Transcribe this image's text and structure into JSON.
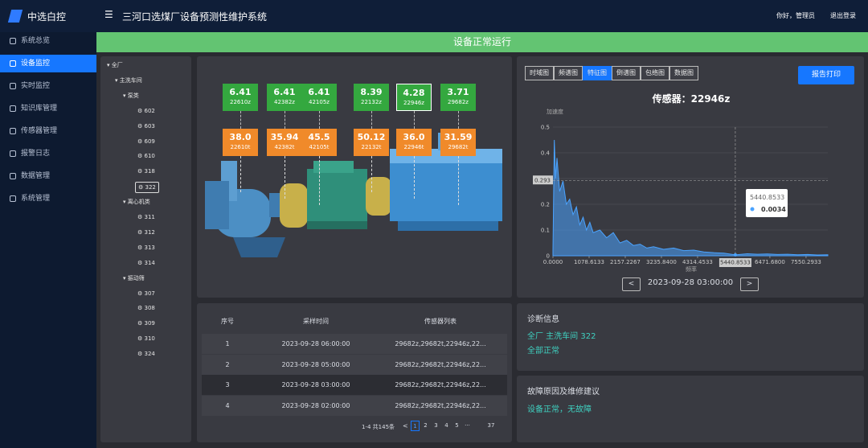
{
  "app": {
    "logo": "中选白控",
    "title": "三河口选煤厂设备预测性维护系统",
    "greeting": "你好，管理员",
    "logout": "退出登录"
  },
  "sidebar": [
    "系统总览",
    "设备监控",
    "实时监控",
    "知识库管理",
    "传感器管理",
    "报警日志",
    "数据管理",
    "系统管理"
  ],
  "banner": "设备正常运行",
  "tree": {
    "label": "全厂",
    "children": [
      {
        "label": "主洗车间",
        "children": [
          {
            "label": "泵类",
            "children": [
              {
                "label": "602"
              },
              {
                "label": "603"
              },
              {
                "label": "609"
              },
              {
                "label": "610"
              },
              {
                "label": "318"
              },
              {
                "label": "322",
                "selected": true
              }
            ]
          },
          {
            "label": "离心机类",
            "children": [
              {
                "label": "311"
              },
              {
                "label": "312"
              },
              {
                "label": "313"
              },
              {
                "label": "314"
              }
            ]
          },
          {
            "label": "振动筛",
            "children": [
              {
                "label": "307"
              },
              {
                "label": "308"
              },
              {
                "label": "309"
              },
              {
                "label": "310"
              },
              {
                "label": "324"
              }
            ]
          }
        ]
      }
    ]
  },
  "sensors": [
    {
      "top": {
        "value": "6.41",
        "id": "22610z"
      },
      "bottom": {
        "value": "38.0",
        "id": "22610t"
      }
    },
    {
      "top": {
        "value": "6.41",
        "id": "42382z"
      },
      "bottom": {
        "value": "35.94",
        "id": "42382t"
      }
    },
    {
      "top": {
        "value": "6.41",
        "id": "42105z"
      },
      "bottom": {
        "value": "45.5",
        "id": "42105t"
      }
    },
    {
      "top": {
        "value": "8.39",
        "id": "22132z"
      },
      "bottom": {
        "value": "50.12",
        "id": "22132t"
      }
    },
    {
      "top": {
        "value": "4.28",
        "id": "22946z",
        "selected": true
      },
      "bottom": {
        "value": "36.0",
        "id": "22946t"
      }
    },
    {
      "top": {
        "value": "3.71",
        "id": "29682z"
      },
      "bottom": {
        "value": "31.59",
        "id": "29682t"
      }
    }
  ],
  "tabs": [
    {
      "label": "时域图"
    },
    {
      "label": "频谱图"
    },
    {
      "label": "特征图",
      "active": true
    },
    {
      "label": "倒谱图"
    },
    {
      "label": "包络图"
    },
    {
      "label": "数据图"
    }
  ],
  "print_button": "报告打印",
  "chart_data": {
    "type": "area",
    "title": "传感器：22946z",
    "y_label": "加速度",
    "x_label": "频率",
    "color": "#4aa3ff",
    "x": [
      0,
      40,
      80,
      120,
      200,
      300,
      400,
      500,
      600,
      700,
      800,
      900,
      1000,
      1100,
      1200,
      1400,
      1600,
      1800,
      2000,
      2200,
      2400,
      2600,
      2800,
      3000,
      3300,
      3600,
      3900,
      4200,
      4500,
      4800,
      5100,
      5440.8533,
      5800,
      6100,
      6400,
      6700,
      7000,
      7300,
      7600,
      7900,
      8200
    ],
    "values": [
      0.02,
      0.45,
      0.3,
      0.38,
      0.25,
      0.29,
      0.2,
      0.22,
      0.16,
      0.19,
      0.12,
      0.15,
      0.1,
      0.13,
      0.09,
      0.1,
      0.07,
      0.09,
      0.05,
      0.06,
      0.04,
      0.045,
      0.03,
      0.035,
      0.025,
      0.03,
      0.02,
      0.022,
      0.015,
      0.012,
      0.01,
      0.0034,
      0.008,
      0.006,
      0.007,
      0.005,
      0.006,
      0.004,
      0.005,
      0.003,
      0.004
    ],
    "xlim": [
      0,
      8200
    ],
    "ylim": [
      0,
      0.5
    ],
    "xticks": [
      {
        "value": 0,
        "label": "0.0000"
      },
      1078.6133,
      2157.2267,
      {
        "value": 3235.84,
        "label": "3235.8400"
      },
      4314.4533,
      {
        "value": 6471.68,
        "label": "6471.6800"
      },
      7550.2933
    ],
    "yticks": [
      0,
      0.1,
      0.2,
      0.3,
      0.4,
      0.5
    ],
    "grid": true,
    "crosshair_y": 0.293,
    "pointer_index": 31
  },
  "nav": {
    "prev": "<",
    "date": "2023-09-28 03:00:00",
    "next": ">"
  },
  "table": {
    "headers": [
      "序号",
      "采样时间",
      "传感器列表"
    ],
    "rows": [
      [
        1,
        "2023-09-28 06:00:00",
        "29682z,29682t,22946z,22..."
      ],
      [
        2,
        "2023-09-28 05:00:00",
        "29682z,29682t,22946z,22..."
      ],
      [
        3,
        "2023-09-28 03:00:00",
        "29682z,29682t,22946z,22..."
      ],
      [
        4,
        "2023-09-28 02:00:00",
        "29682z,29682t,22946z,22..."
      ]
    ]
  },
  "pagination": {
    "summary": "1-4 共145条",
    "prev": "<",
    "pages": [
      1,
      2,
      3,
      4,
      5,
      "···",
      37
    ]
  },
  "diagnosis": {
    "title": "诊断信息",
    "lines": [
      "全厂 主洗车间 322",
      "全部正常"
    ]
  },
  "fault": {
    "title": "故障原因及维修建议",
    "lines": [
      "设备正常，无故障"
    ]
  }
}
